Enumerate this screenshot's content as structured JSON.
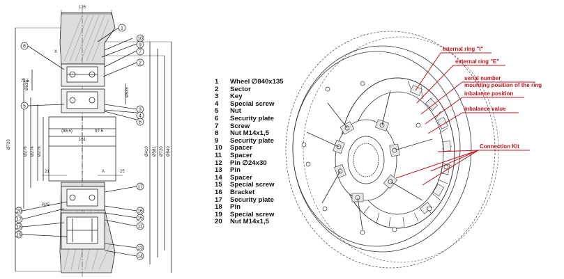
{
  "parts_list": [
    {
      "num": "1",
      "name": "Wheel ∅840x135"
    },
    {
      "num": "2",
      "name": "Sector"
    },
    {
      "num": "3",
      "name": "Key"
    },
    {
      "num": "4",
      "name": "Special screw"
    },
    {
      "num": "5",
      "name": "Nut"
    },
    {
      "num": "6",
      "name": "Security plate"
    },
    {
      "num": "7",
      "name": "Screw"
    },
    {
      "num": "8",
      "name": "Nut M14x1,5"
    },
    {
      "num": "9",
      "name": "Security plate"
    },
    {
      "num": "10",
      "name": "Spacer"
    },
    {
      "num": "11",
      "name": "Spacer"
    },
    {
      "num": "12",
      "name": "Pin ∅24x30"
    },
    {
      "num": "13",
      "name": "Pin"
    },
    {
      "num": "14",
      "name": "Spacer"
    },
    {
      "num": "15",
      "name": "Special screw"
    },
    {
      "num": "16",
      "name": "Bracket"
    },
    {
      "num": "17",
      "name": "Security plate"
    },
    {
      "num": "18",
      "name": "Pin"
    },
    {
      "num": "19",
      "name": "Special screw"
    },
    {
      "num": "20",
      "name": "Nut M14x1,5"
    }
  ],
  "perspective_labels": {
    "internal_ring": "Internal ring \"I\"",
    "external_ring": "external ring \"E\"",
    "serial_number": "serial number",
    "mounting_position": "mounting position of the ring",
    "inbalance_position": "inbalance position",
    "inbalance_value": "inbalance value",
    "connection_kit": "Connection Kit"
  },
  "section_drawing": {
    "top_dimension": "135",
    "dim_left_1": "Ø720",
    "dim_left_2": "Ø276",
    "dim_left_3": "Ø274",
    "dim_left_4": "Ø276",
    "dim_left_5": "Ø535",
    "dim_right_1": "Ø410",
    "dim_right_2": "Ø581",
    "dim_right_3": "Ø720",
    "dim_right_4": "Ø840",
    "dim_small_1": "72,5",
    "dim_small_2": "Ø535",
    "center_1": "161",
    "center_2": "(88.5)",
    "center_3": "97.5",
    "label_21": "21",
    "label_25": "25",
    "label_r25": "R25",
    "label_a": "A",
    "label_x": "X"
  },
  "section_callouts_left": [
    "8",
    "5",
    "20",
    "17",
    "18",
    "19"
  ],
  "section_callouts_right": [
    "1",
    "10",
    "9",
    "7",
    "2",
    "3",
    "4",
    "6",
    "17",
    "16",
    "15",
    "12",
    "11",
    "13",
    "14"
  ],
  "colors": {
    "accent_red": "#c0141a",
    "line": "#222222"
  }
}
